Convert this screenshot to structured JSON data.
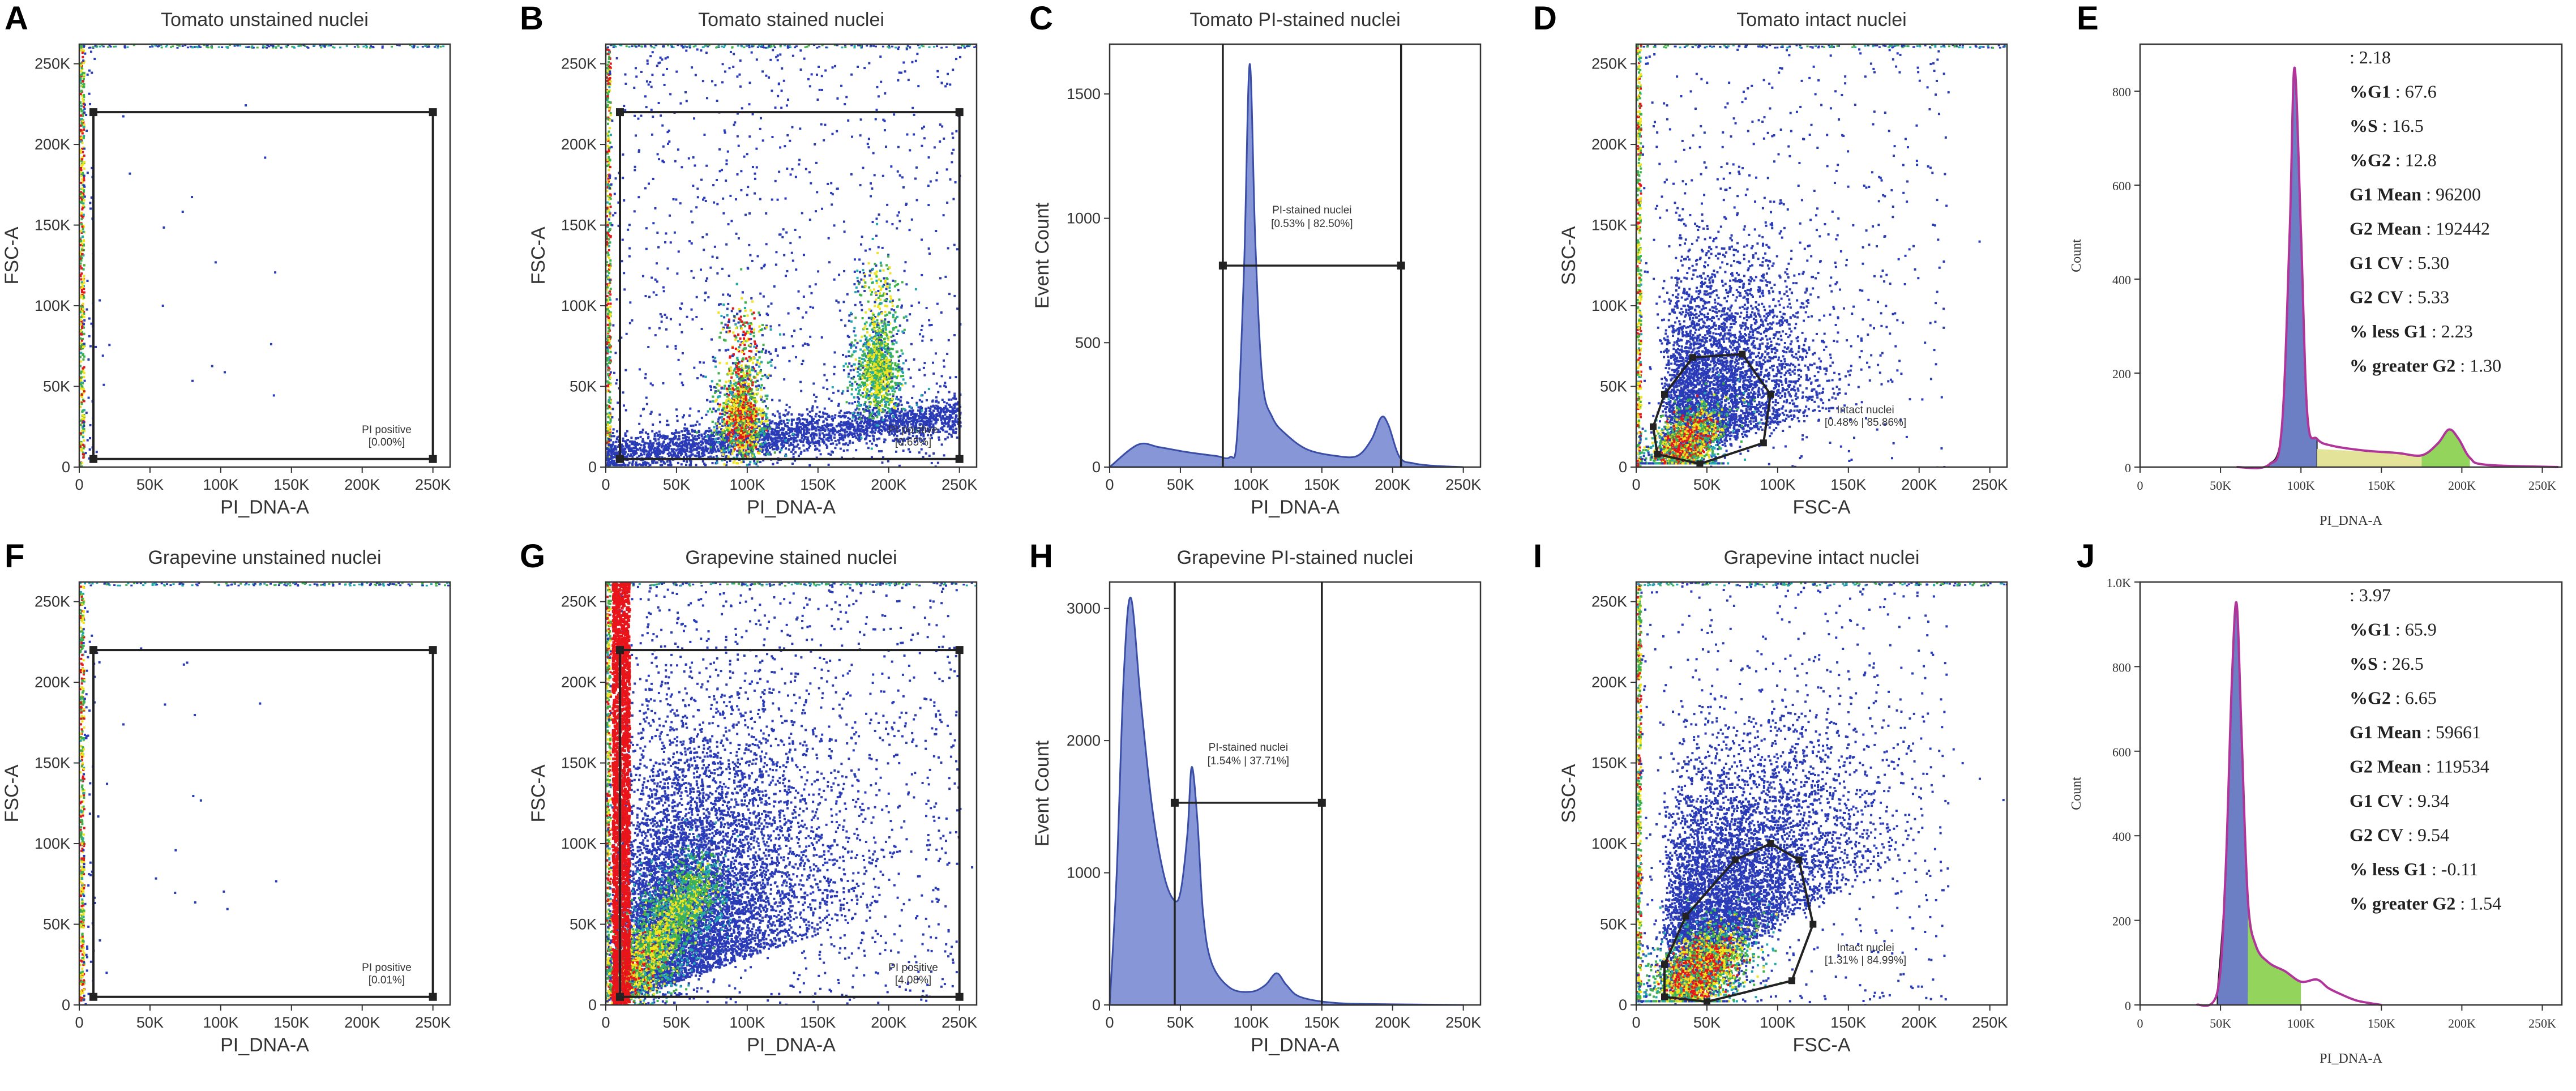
{
  "colors": {
    "scatter_low": "#2a3bb8",
    "scatter_mid": "#22a9b0",
    "scatter_green": "#3fb24a",
    "scatter_yellow": "#f1e41c",
    "scatter_high": "#e8151b",
    "hist_fill": "#8696d6",
    "hist_stroke": "#3a4ea8",
    "fit_line": "#b0349a",
    "g1_fill": "#6d7fc4",
    "s_fill": "#e3e39a",
    "g2_fill": "#92d45c",
    "gate": "#222222"
  },
  "chart_data": [
    {
      "panel_label": "A",
      "type": "scatter",
      "title": "Tomato unstained nuclei",
      "xlabel": "PI_DNA-A",
      "ylabel": "FSC-A",
      "xlim": [
        0,
        262144
      ],
      "ylim": [
        0,
        262144
      ],
      "x_ticks": [
        "0",
        "50K",
        "100K",
        "150K",
        "200K",
        "250K"
      ],
      "y_ticks": [
        "0",
        "50K",
        "100K",
        "150K",
        "200K",
        "250K"
      ],
      "gate": {
        "name": "PI positive",
        "stats": "[0.00%]",
        "x": [
          10000,
          250000
        ],
        "y": [
          5000,
          220000
        ]
      },
      "populations": []
    },
    {
      "panel_label": "B",
      "type": "scatter",
      "title": "Tomato stained nuclei",
      "xlabel": "PI_DNA-A",
      "ylabel": "FSC-A",
      "xlim": [
        0,
        262144
      ],
      "ylim": [
        0,
        262144
      ],
      "x_ticks": [
        "0",
        "50K",
        "100K",
        "150K",
        "200K",
        "250K"
      ],
      "y_ticks": [
        "0",
        "50K",
        "100K",
        "150K",
        "200K",
        "250K"
      ],
      "gate": {
        "name": "PI positive",
        "stats": "[0.65%]",
        "x": [
          10000,
          250000
        ],
        "y": [
          5000,
          220000
        ]
      },
      "populations": [
        {
          "x": 96000,
          "y": 32000,
          "peak_density": "high"
        },
        {
          "x": 192000,
          "y": 60000,
          "peak_density": "medium"
        }
      ]
    },
    {
      "panel_label": "C",
      "type": "area",
      "title": "Tomato PI-stained nuclei",
      "xlabel": "PI_DNA-A",
      "ylabel": "Event Count",
      "xlim": [
        0,
        262144
      ],
      "ylim": [
        0,
        1700
      ],
      "x_ticks": [
        "0",
        "50K",
        "100K",
        "150K",
        "200K",
        "250K"
      ],
      "y_ticks": [
        "0",
        "500",
        "1000",
        "1500"
      ],
      "x": [
        0,
        20000,
        35000,
        55000,
        75000,
        85000,
        90000,
        95000,
        99000,
        103000,
        108000,
        115000,
        125000,
        140000,
        160000,
        175000,
        185000,
        192000,
        197000,
        205000,
        215000,
        230000,
        250000
      ],
      "y": [
        0,
        90,
        80,
        60,
        45,
        40,
        120,
        800,
        1620,
        900,
        350,
        200,
        130,
        70,
        45,
        45,
        110,
        200,
        170,
        40,
        15,
        5,
        0
      ],
      "gate": {
        "name": "PI-stained nuclei",
        "stats": "[0.53% | 82.50%]",
        "x": [
          80000,
          206000
        ],
        "y": 810
      }
    },
    {
      "panel_label": "D",
      "type": "scatter",
      "title": "Tomato intact nuclei",
      "xlabel": "FSC-A",
      "ylabel": "SSC-A",
      "xlim": [
        0,
        262144
      ],
      "ylim": [
        0,
        262144
      ],
      "x_ticks": [
        "0",
        "50K",
        "100K",
        "150K",
        "200K",
        "250K"
      ],
      "y_ticks": [
        "0",
        "50K",
        "100K",
        "150K",
        "200K",
        "250K"
      ],
      "gate": {
        "name": "Intact nuclei",
        "stats": "[0.48% | 85.86%]",
        "polygon": [
          [
            15000,
            8000
          ],
          [
            45000,
            2000
          ],
          [
            90000,
            15000
          ],
          [
            95000,
            45000
          ],
          [
            75000,
            70000
          ],
          [
            40000,
            68000
          ],
          [
            20000,
            45000
          ],
          [
            12000,
            25000
          ]
        ]
      },
      "populations": [
        {
          "x": 35000,
          "y": 15000,
          "peak_density": "high"
        }
      ]
    },
    {
      "panel_label": "E",
      "type": "area",
      "title": "",
      "xlabel": "PI_DNA-A",
      "ylabel": "Count",
      "xlim": [
        0,
        262144
      ],
      "ylim": [
        0,
        900
      ],
      "x_ticks": [
        "0",
        "50K",
        "100K",
        "150K",
        "200K",
        "250K"
      ],
      "y_ticks": [
        "0",
        "200",
        "400",
        "600",
        "800"
      ],
      "x": [
        60000,
        80000,
        88000,
        93000,
        96000,
        100000,
        104000,
        110000,
        120000,
        140000,
        160000,
        175000,
        185000,
        192000,
        198000,
        205000,
        215000,
        260000
      ],
      "y": [
        0,
        5,
        80,
        500,
        850,
        500,
        110,
        60,
        45,
        35,
        30,
        25,
        50,
        80,
        60,
        20,
        5,
        0
      ],
      "stats": [
        {
          "label": "",
          "value": ": 2.18"
        },
        {
          "label": "%G1",
          "value": " : 67.6"
        },
        {
          "label": "%S",
          "value": " : 16.5"
        },
        {
          "label": "%G2",
          "value": " : 12.8"
        },
        {
          "label": "G1 Mean",
          "value": " : 96200"
        },
        {
          "label": "G2 Mean",
          "value": " : 192442"
        },
        {
          "label": "G1 CV",
          "value": " : 5.30"
        },
        {
          "label": "G2 CV",
          "value": " : 5.33"
        },
        {
          "label": "% less G1",
          "value": " : 2.23"
        },
        {
          "label": "% greater G2",
          "value": " : 1.30"
        }
      ]
    },
    {
      "panel_label": "F",
      "type": "scatter",
      "title": "Grapevine unstained nuclei",
      "xlabel": "PI_DNA-A",
      "ylabel": "FSC-A",
      "xlim": [
        0,
        262144
      ],
      "ylim": [
        0,
        262144
      ],
      "x_ticks": [
        "0",
        "50K",
        "100K",
        "150K",
        "200K",
        "250K"
      ],
      "y_ticks": [
        "0",
        "50K",
        "100K",
        "150K",
        "200K",
        "250K"
      ],
      "gate": {
        "name": "PI positive",
        "stats": "[0.01%]",
        "x": [
          10000,
          250000
        ],
        "y": [
          5000,
          220000
        ]
      },
      "populations": []
    },
    {
      "panel_label": "G",
      "type": "scatter",
      "title": "Grapevine stained nuclei",
      "xlabel": "PI_DNA-A",
      "ylabel": "FSC-A",
      "xlim": [
        0,
        262144
      ],
      "ylim": [
        0,
        262144
      ],
      "x_ticks": [
        "0",
        "50K",
        "100K",
        "150K",
        "200K",
        "250K"
      ],
      "y_ticks": [
        "0",
        "50K",
        "100K",
        "150K",
        "200K",
        "250K"
      ],
      "gate": {
        "name": "PI positive",
        "stats": "[4.08%]",
        "x": [
          10000,
          250000
        ],
        "y": [
          5000,
          220000
        ]
      },
      "populations": [
        {
          "x": 45000,
          "y": 40000,
          "peak_density": "high"
        },
        {
          "x": 120000,
          "y": 70000,
          "peak_density": "low"
        }
      ]
    },
    {
      "panel_label": "H",
      "type": "area",
      "title": "Grapevine PI-stained nuclei",
      "xlabel": "PI_DNA-A",
      "ylabel": "Event Count",
      "xlim": [
        0,
        262144
      ],
      "ylim": [
        0,
        3200
      ],
      "x_ticks": [
        "0",
        "50K",
        "100K",
        "150K",
        "200K",
        "250K"
      ],
      "y_ticks": [
        "0",
        "1000",
        "2000",
        "3000"
      ],
      "x": [
        0,
        5000,
        10000,
        15000,
        22000,
        30000,
        38000,
        45000,
        50000,
        55000,
        58000,
        62000,
        66000,
        72000,
        85000,
        100000,
        110000,
        118000,
        125000,
        135000,
        160000,
        200000,
        250000
      ],
      "y": [
        0,
        1000,
        2500,
        3080,
        2300,
        1500,
        1000,
        800,
        850,
        1300,
        1800,
        1400,
        700,
        320,
        130,
        100,
        150,
        240,
        150,
        60,
        15,
        5,
        0
      ],
      "gate": {
        "name": "PI-stained nuclei",
        "stats": "[1.54% | 37.71%]",
        "x": [
          46000,
          150000
        ],
        "y": 1530
      }
    },
    {
      "panel_label": "I",
      "type": "scatter",
      "title": "Grapevine intact nuclei",
      "xlabel": "FSC-A",
      "ylabel": "SSC-A",
      "xlim": [
        0,
        262144
      ],
      "ylim": [
        0,
        262144
      ],
      "x_ticks": [
        "0",
        "50K",
        "100K",
        "150K",
        "200K",
        "250K"
      ],
      "y_ticks": [
        "0",
        "50K",
        "100K",
        "150K",
        "200K",
        "250K"
      ],
      "gate": {
        "name": "Intact nuclei",
        "stats": "[1.31% | 84.99%]",
        "polygon": [
          [
            20000,
            5000
          ],
          [
            50000,
            2000
          ],
          [
            110000,
            15000
          ],
          [
            125000,
            50000
          ],
          [
            115000,
            90000
          ],
          [
            95000,
            100000
          ],
          [
            70000,
            90000
          ],
          [
            35000,
            55000
          ],
          [
            20000,
            25000
          ]
        ]
      },
      "populations": [
        {
          "x": 45000,
          "y": 22000,
          "peak_density": "high"
        }
      ]
    },
    {
      "panel_label": "J",
      "type": "area",
      "title": "",
      "xlabel": "PI_DNA-A",
      "ylabel": "Count",
      "xlim": [
        0,
        262144
      ],
      "ylim": [
        0,
        1000
      ],
      "x_ticks": [
        "0",
        "50K",
        "100K",
        "150K",
        "200K",
        "250K"
      ],
      "y_ticks": [
        "0",
        "200",
        "400",
        "600",
        "800",
        "1.0K"
      ],
      "x": [
        35000,
        48000,
        53000,
        57000,
        60000,
        63000,
        67000,
        72000,
        80000,
        90000,
        100000,
        110000,
        117000,
        125000,
        135000,
        150000
      ],
      "y": [
        0,
        30,
        300,
        760,
        950,
        650,
        250,
        140,
        100,
        80,
        55,
        60,
        40,
        25,
        10,
        0
      ],
      "stats": [
        {
          "label": "",
          "value": ": 3.97"
        },
        {
          "label": "%G1",
          "value": " : 65.9"
        },
        {
          "label": "%S",
          "value": " : 26.5"
        },
        {
          "label": "%G2",
          "value": " : 6.65"
        },
        {
          "label": "G1 Mean",
          "value": " : 59661"
        },
        {
          "label": "G2 Mean",
          "value": " : 119534"
        },
        {
          "label": "G1 CV",
          "value": " : 9.34"
        },
        {
          "label": "G2 CV",
          "value": " : 9.54"
        },
        {
          "label": "% less G1",
          "value": " : -0.11"
        },
        {
          "label": "% greater G2",
          "value": " : 1.54"
        }
      ]
    }
  ]
}
